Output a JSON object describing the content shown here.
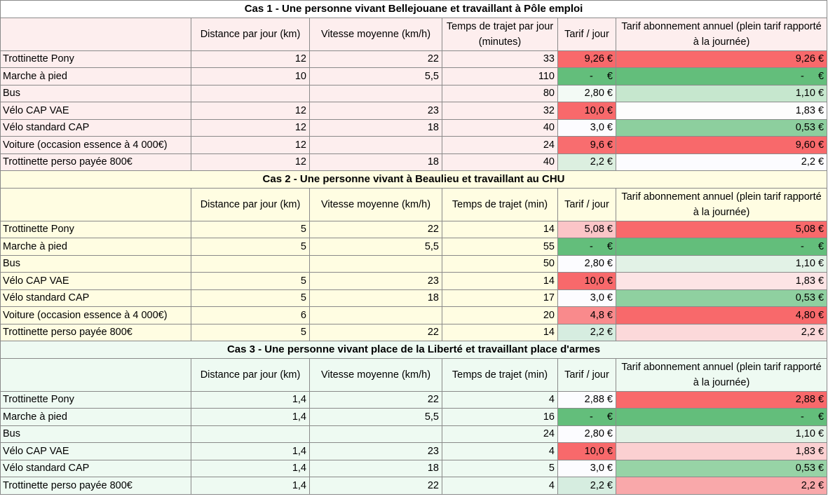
{
  "sections": [
    {
      "title": "Cas 1 - Une personne vivant Bellejouane et travaillant à Pôle emploi",
      "background": "#fdeeee",
      "title_background": "#ffffff",
      "header": [
        "Distance par jour (km)",
        "Vitesse moyenne (km/h)",
        "Temps de trajet par jour (minutes)",
        "Tarif / jour",
        "Tarif abonnement annuel (plein tarif rapporté à la journée)"
      ],
      "rows": [
        {
          "cells": [
            "Trottinette Pony",
            "12",
            "22",
            "33",
            "9,26 €",
            "9,26 €"
          ],
          "colors": [
            "#f8696b",
            "#f8696b"
          ]
        },
        {
          "cells": [
            "Marche à pied",
            "10",
            "5,5",
            "110",
            "-     €",
            "-     €"
          ],
          "colors": [
            "#63be7b",
            "#63be7b"
          ]
        },
        {
          "cells": [
            "Bus",
            null,
            null,
            "80",
            "2,80 €",
            "1,10 €"
          ],
          "colors": [
            "#f3faf5",
            "#c6e7ce"
          ]
        },
        {
          "cells": [
            "Vélo CAP VAE",
            "12",
            "23",
            "32",
            "10,0 €",
            "1,83 €"
          ],
          "colors": [
            "#f8696b",
            "#fdfdfd"
          ]
        },
        {
          "cells": [
            "Vélo standard CAP",
            "12",
            "18",
            "40",
            "3,0 €",
            "0,53 €"
          ],
          "colors": [
            "#fcfcff",
            "#8dcf9e"
          ]
        },
        {
          "cells": [
            "Voiture (occasion essence à 4 000€)",
            "12",
            null,
            "24",
            "9,6 €",
            "9,60 €"
          ],
          "colors": [
            "#f86d6f",
            "#f8696b"
          ]
        },
        {
          "cells": [
            "Trottinette perso payée 800€",
            "12",
            "18",
            "40",
            "2,2 €",
            "2,2 €"
          ],
          "colors": [
            "#dcefe0",
            "#fcfcff"
          ]
        }
      ]
    },
    {
      "title": "Cas 2 - Une personne vivant à Beaulieu et travaillant au CHU",
      "background": "#fffde2",
      "title_background": "#fffde2",
      "header": [
        "Distance par jour (km)",
        "Vitesse moyenne (km/h)",
        "Temps de trajet (min)",
        "Tarif / jour",
        "Tarif abonnement annuel (plein tarif rapporté à la journée)"
      ],
      "rows": [
        {
          "cells": [
            "Trottinette Pony",
            "5",
            "22",
            "14",
            "5,08 €",
            "5,08 €"
          ],
          "colors": [
            "#fbc5c7",
            "#f8696b"
          ]
        },
        {
          "cells": [
            "Marche à pied",
            "5",
            "5,5",
            "55",
            "-     €",
            "-     €"
          ],
          "colors": [
            "#63be7b",
            "#63be7b"
          ]
        },
        {
          "cells": [
            "Bus",
            null,
            null,
            "50",
            "2,80 €",
            "1,10 €"
          ],
          "colors": [
            "#fcfcff",
            "#e2f2e6"
          ]
        },
        {
          "cells": [
            "Vélo CAP VAE",
            "5",
            "23",
            "14",
            "10,0 €",
            "1,83 €"
          ],
          "colors": [
            "#f8696b",
            "#fde4e5"
          ]
        },
        {
          "cells": [
            "Vélo standard CAP",
            "5",
            "18",
            "17",
            "3,0 €",
            "0,53 €"
          ],
          "colors": [
            "#fcfcff",
            "#8fd0a0"
          ]
        },
        {
          "cells": [
            "Voiture (occasion essence à 4 000€)",
            "6",
            null,
            "20",
            "4,8 €",
            "4,80 €"
          ],
          "colors": [
            "#f98a8c",
            "#f8696b"
          ]
        },
        {
          "cells": [
            "Trottinette perso payée 800€",
            "5",
            "22",
            "14",
            "2,2 €",
            "2,2 €"
          ],
          "colors": [
            "#d6ede0",
            "#fcd9da"
          ]
        }
      ]
    },
    {
      "title": "Cas 3 - Une personne vivant place de la Liberté et travaillant place d'armes",
      "background": "#eefaf2",
      "title_background": "#eefaf2",
      "header": [
        "Distance par jour (km)",
        "Vitesse moyenne (km/h)",
        "Temps de trajet (min)",
        "Tarif / jour",
        "Tarif abonnement annuel (plein tarif rapporté à la journée)"
      ],
      "rows": [
        {
          "cells": [
            "Trottinette Pony",
            "1,4",
            "22",
            "4",
            "2,88 €",
            "2,88 €"
          ],
          "colors": [
            "#fcfcff",
            "#f8696b"
          ]
        },
        {
          "cells": [
            "Marche à pied",
            "1,4",
            "5,5",
            "16",
            "-     €",
            "-     €"
          ],
          "colors": [
            "#63be7b",
            "#63be7b"
          ]
        },
        {
          "cells": [
            "Bus",
            null,
            null,
            "24",
            "2,80 €",
            "1,10 €"
          ],
          "colors": [
            "#fcfcff",
            "#e2f2e6"
          ]
        },
        {
          "cells": [
            "Vélo CAP VAE",
            "1,4",
            "23",
            "4",
            "10,0 €",
            "1,83 €"
          ],
          "colors": [
            "#f8696b",
            "#fbd0d1"
          ]
        },
        {
          "cells": [
            "Vélo standard CAP",
            "1,4",
            "18",
            "5",
            "3,0 €",
            "0,53 €"
          ],
          "colors": [
            "#fcfcff",
            "#97d3a6"
          ]
        },
        {
          "cells": [
            "Trottinette perso payée 800€",
            "1,4",
            "22",
            "4",
            "2,2 €",
            "2,2 €"
          ],
          "colors": [
            "#d6ede0",
            "#f9a8aa"
          ]
        }
      ]
    }
  ]
}
